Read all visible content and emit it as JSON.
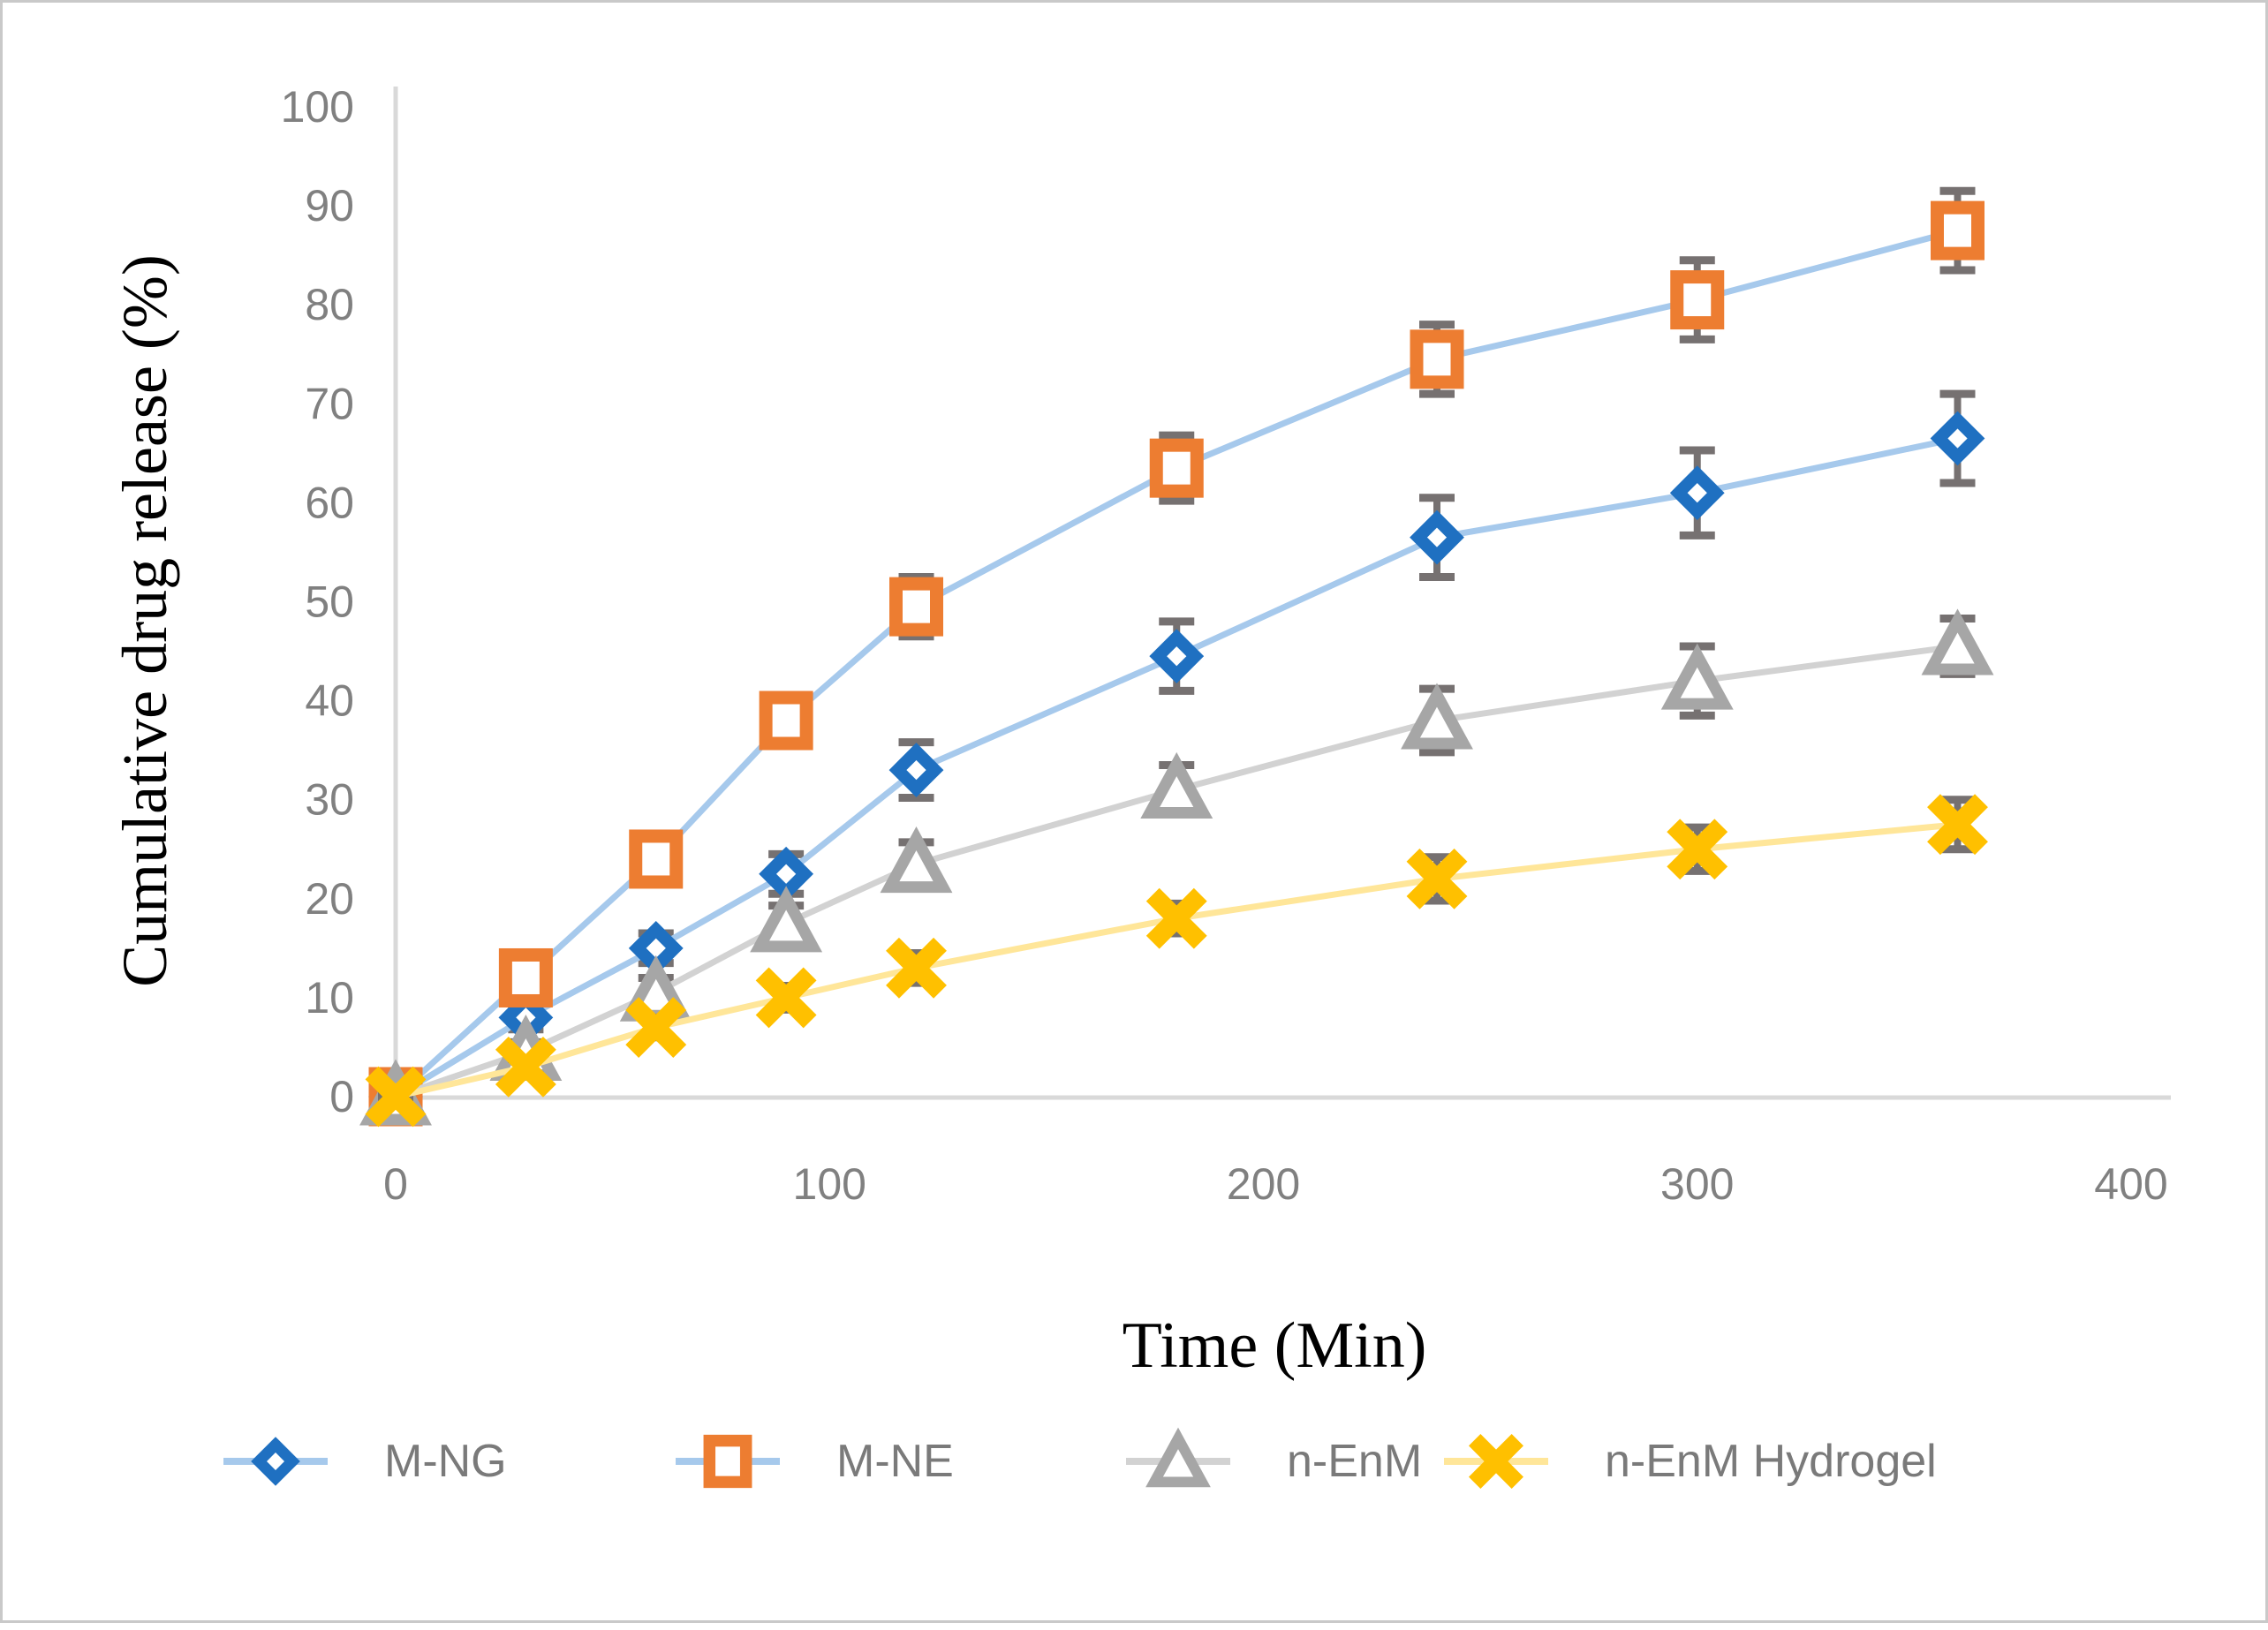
{
  "figure": {
    "background": "#ffffff",
    "border_color": "#c9c9c9"
  },
  "chart_data": {
    "type": "line",
    "title": "",
    "xlabel": "Time (Min)",
    "ylabel": "Cumulative drug release (%)",
    "x": [
      0,
      30,
      60,
      90,
      120,
      180,
      240,
      300,
      360
    ],
    "xlim": [
      0,
      400
    ],
    "ylim": [
      0,
      100
    ],
    "x_ticks": [
      0,
      100,
      200,
      300,
      400
    ],
    "y_ticks": [
      0,
      10,
      20,
      30,
      40,
      50,
      60,
      70,
      80,
      90,
      100
    ],
    "grid": false,
    "legend_position": "bottom",
    "error_bars": true,
    "series": [
      {
        "name": "M-NG",
        "marker": "diamond",
        "marker_color": "#1F70C1",
        "line_color": "#A6C9EC",
        "values": [
          0,
          8,
          15,
          22.5,
          33,
          44.5,
          56.5,
          61,
          66.5
        ],
        "errors": [
          0.5,
          1.2,
          1.5,
          2,
          2.8,
          3.5,
          4,
          4.3,
          4.5
        ]
      },
      {
        "name": "M-NE",
        "marker": "square",
        "marker_color": "#ED7D31",
        "line_color": "#A6C9EC",
        "values": [
          0,
          12,
          24,
          38,
          49.5,
          63.5,
          74.5,
          80.5,
          87.5
        ],
        "errors": [
          0.5,
          1.5,
          1.5,
          2,
          3,
          3.3,
          3.5,
          4,
          4
        ]
      },
      {
        "name": "n-EnM",
        "marker": "triangle",
        "marker_color": "#A6A6A6",
        "line_color": "#D2D2D2",
        "values": [
          0,
          4.5,
          10.5,
          17.5,
          23.5,
          31,
          38,
          42,
          45.5
        ],
        "errors": [
          0.5,
          1,
          1.5,
          1.8,
          2.2,
          2.5,
          3.2,
          3.5,
          2.8
        ]
      },
      {
        "name": "n-EnM Hydrogel",
        "marker": "x",
        "marker_color": "#FFC000",
        "line_color": "#FFE699",
        "values": [
          0,
          3,
          7,
          10,
          13,
          18,
          22,
          25,
          27.5
        ],
        "errors": [
          0.3,
          0.8,
          1,
          1.2,
          1.5,
          1.5,
          2.2,
          2.2,
          2.5
        ]
      }
    ],
    "error_bar_color": "#767171",
    "axis_color": "#D9D9D9",
    "tick_label_color": "#808080",
    "legend_text_color": "#7A7A7A"
  }
}
